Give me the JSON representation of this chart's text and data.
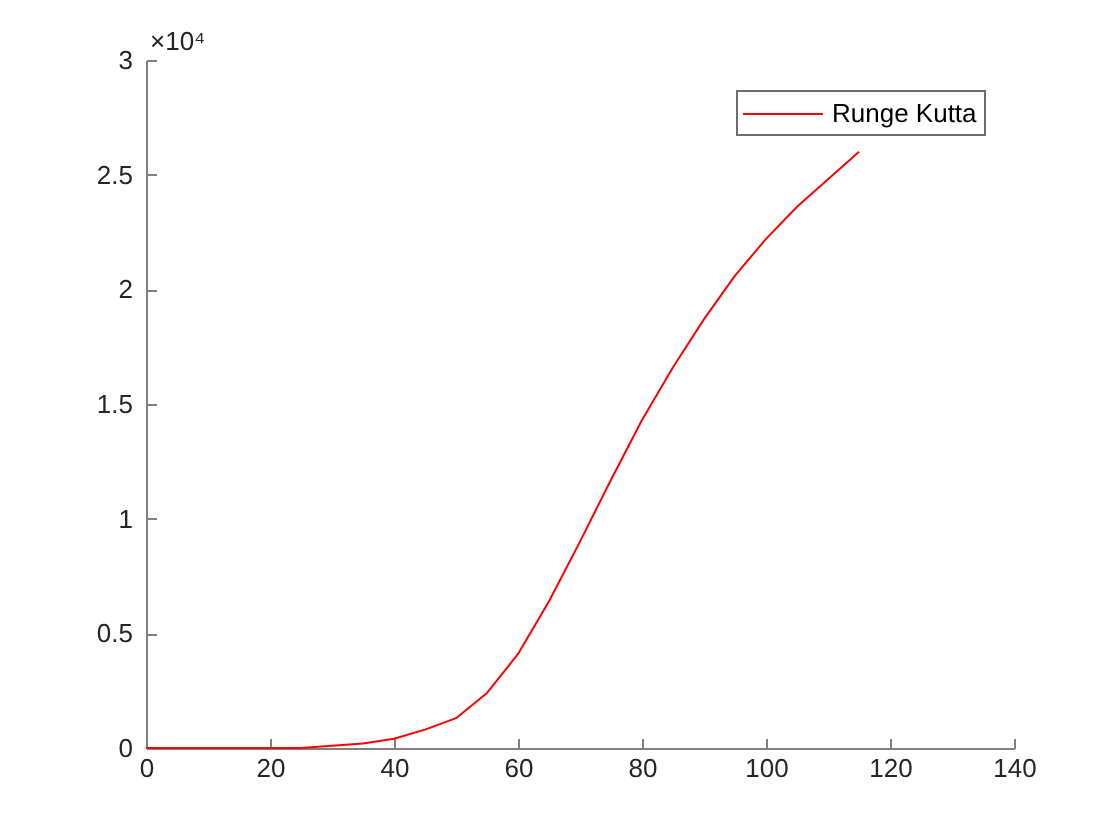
{
  "chart_data": {
    "type": "line",
    "x": [
      0,
      10,
      20,
      25,
      30,
      35,
      40,
      45,
      50,
      55,
      60,
      65,
      70,
      75,
      80,
      85,
      90,
      95,
      100,
      105,
      110,
      115
    ],
    "series": [
      {
        "name": "Runge Kutta",
        "color": "#ff0000",
        "values": [
          0,
          0,
          0,
          0,
          0.01,
          0.02,
          0.04,
          0.08,
          0.13,
          0.24,
          0.41,
          0.64,
          0.9,
          1.17,
          1.43,
          1.66,
          1.87,
          2.06,
          2.22,
          2.36,
          2.48,
          2.6
        ]
      }
    ],
    "xlim": [
      0,
      140
    ],
    "xticks": [
      0,
      20,
      40,
      60,
      80,
      100,
      120,
      140
    ],
    "ylim": [
      0,
      3
    ],
    "yticks": [
      0,
      0.5,
      1,
      1.5,
      2,
      2.5,
      3
    ],
    "annotations": [
      "×10⁴"
    ],
    "legend": "top right",
    "line_style": "solid"
  }
}
